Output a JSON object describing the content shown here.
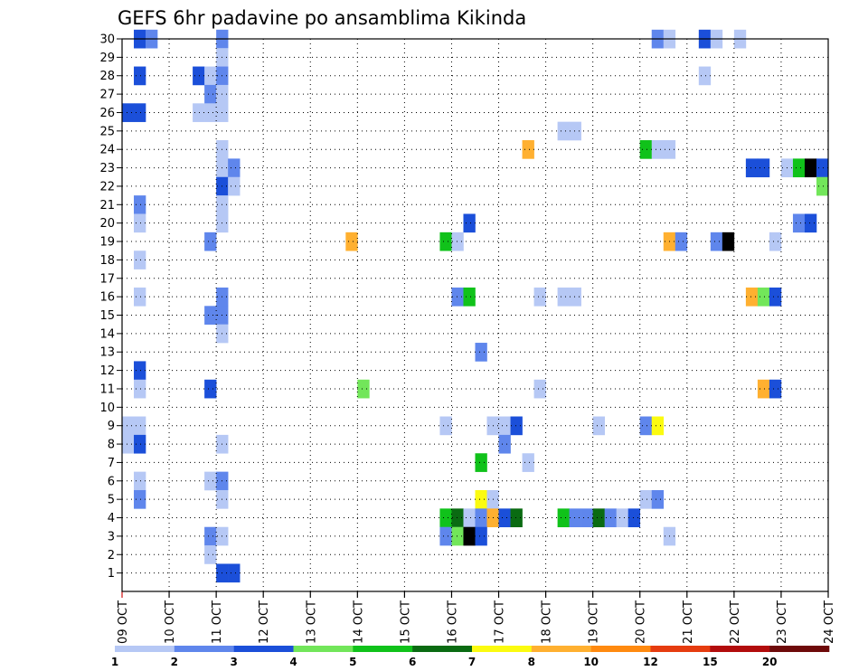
{
  "chart_data": {
    "type": "heatmap",
    "title": "GEFS 6hr padavine po ansamblima Kikinda",
    "xlabel": "",
    "ylabel": "",
    "x_tick_labels": [
      "09 OCT",
      "10 OCT",
      "11 OCT",
      "12 OCT",
      "13 OCT",
      "14 OCT",
      "15 OCT",
      "16 OCT",
      "17 OCT",
      "18 OCT",
      "19 OCT",
      "20 OCT",
      "21 OCT",
      "22 OCT",
      "23 OCT",
      "24 OCT"
    ],
    "y_tick_labels": [
      "1",
      "2",
      "3",
      "4",
      "5",
      "6",
      "7",
      "8",
      "9",
      "10",
      "11",
      "12",
      "13",
      "14",
      "15",
      "16",
      "17",
      "18",
      "19",
      "20",
      "21",
      "22",
      "23",
      "24",
      "25",
      "26",
      "27",
      "28",
      "29",
      "30"
    ],
    "x_unit": "6-hour step index from 09 OCT 00Z (4 steps per day)",
    "x_range": [
      0,
      60
    ],
    "y_range": [
      0,
      30
    ],
    "grid": true,
    "colorbar": {
      "bins": [
        {
          "label": "1",
          "color": "#b6c8f5"
        },
        {
          "label": "2",
          "color": "#5f86ec"
        },
        {
          "label": "3",
          "color": "#1b4fd9"
        },
        {
          "label": "4",
          "color": "#72e65a"
        },
        {
          "label": "5",
          "color": "#10c21a"
        },
        {
          "label": "6",
          "color": "#0a6b12"
        },
        {
          "label": "7",
          "color": "#fbfb10"
        },
        {
          "label": "8",
          "color": "#ffb030"
        },
        {
          "label": "10",
          "color": "#ff8a10"
        },
        {
          "label": "12",
          "color": "#e63c10"
        },
        {
          "label": "15",
          "color": "#b20c0c"
        },
        {
          "label": "20",
          "color": "#6e0a0a"
        }
      ]
    },
    "cells": [
      [
        1,
        30,
        3
      ],
      [
        2,
        30,
        2
      ],
      [
        8,
        30,
        2
      ],
      [
        45,
        30,
        2
      ],
      [
        46,
        30,
        1
      ],
      [
        49,
        30,
        3
      ],
      [
        50,
        30,
        1
      ],
      [
        52,
        30,
        1
      ],
      [
        8,
        29,
        1
      ],
      [
        1,
        28,
        3
      ],
      [
        6,
        28,
        3
      ],
      [
        7,
        28,
        1
      ],
      [
        8,
        28,
        2
      ],
      [
        49,
        28,
        1
      ],
      [
        7,
        27,
        2
      ],
      [
        8,
        27,
        1
      ],
      [
        0,
        26,
        3
      ],
      [
        1,
        26,
        3
      ],
      [
        6,
        26,
        1
      ],
      [
        7,
        26,
        1
      ],
      [
        8,
        26,
        1
      ],
      [
        37,
        25,
        1
      ],
      [
        38,
        25,
        1
      ],
      [
        8,
        24,
        1
      ],
      [
        34,
        24,
        8
      ],
      [
        44,
        24,
        5
      ],
      [
        45,
        24,
        1
      ],
      [
        46,
        24,
        1
      ],
      [
        8,
        23,
        1
      ],
      [
        9,
        23,
        2
      ],
      [
        53,
        23,
        3
      ],
      [
        54,
        23,
        3
      ],
      [
        56,
        23,
        1
      ],
      [
        57,
        23,
        5
      ],
      [
        58,
        23,
        15
      ],
      [
        59,
        23,
        3
      ],
      [
        8,
        22,
        3
      ],
      [
        9,
        22,
        1
      ],
      [
        59,
        22,
        4
      ],
      [
        1,
        21,
        2
      ],
      [
        8,
        21,
        1
      ],
      [
        1,
        20,
        1
      ],
      [
        8,
        20,
        1
      ],
      [
        29,
        20,
        3
      ],
      [
        57,
        20,
        2
      ],
      [
        58,
        20,
        3
      ],
      [
        7,
        19,
        2
      ],
      [
        19,
        19,
        8
      ],
      [
        27,
        19,
        5
      ],
      [
        28,
        19,
        1
      ],
      [
        46,
        19,
        8
      ],
      [
        47,
        19,
        2
      ],
      [
        50,
        19,
        2
      ],
      [
        51,
        19,
        15
      ],
      [
        55,
        19,
        1
      ],
      [
        1,
        18,
        1
      ],
      [
        1,
        16,
        1
      ],
      [
        8,
        16,
        2
      ],
      [
        28,
        16,
        2
      ],
      [
        29,
        16,
        5
      ],
      [
        35,
        16,
        1
      ],
      [
        37,
        16,
        1
      ],
      [
        38,
        16,
        1
      ],
      [
        53,
        16,
        8
      ],
      [
        54,
        16,
        4
      ],
      [
        55,
        16,
        3
      ],
      [
        7,
        15,
        2
      ],
      [
        8,
        15,
        2
      ],
      [
        8,
        14,
        1
      ],
      [
        30,
        13,
        2
      ],
      [
        1,
        12,
        3
      ],
      [
        1,
        11,
        1
      ],
      [
        7,
        11,
        3
      ],
      [
        20,
        11,
        4
      ],
      [
        35,
        11,
        1
      ],
      [
        54,
        11,
        8
      ],
      [
        55,
        11,
        3
      ],
      [
        0,
        9,
        1
      ],
      [
        1,
        9,
        1
      ],
      [
        27,
        9,
        1
      ],
      [
        31,
        9,
        1
      ],
      [
        32,
        9,
        1
      ],
      [
        33,
        9,
        3
      ],
      [
        40,
        9,
        1
      ],
      [
        44,
        9,
        2
      ],
      [
        45,
        9,
        7
      ],
      [
        0,
        8,
        1
      ],
      [
        1,
        8,
        3
      ],
      [
        8,
        8,
        1
      ],
      [
        32,
        8,
        2
      ],
      [
        30,
        7,
        5
      ],
      [
        34,
        7,
        1
      ],
      [
        1,
        6,
        1
      ],
      [
        7,
        6,
        1
      ],
      [
        8,
        6,
        2
      ],
      [
        1,
        5,
        2
      ],
      [
        8,
        5,
        1
      ],
      [
        30,
        5,
        7
      ],
      [
        31,
        5,
        1
      ],
      [
        44,
        5,
        1
      ],
      [
        45,
        5,
        2
      ],
      [
        27,
        4,
        5
      ],
      [
        28,
        4,
        6
      ],
      [
        29,
        4,
        1
      ],
      [
        30,
        4,
        2
      ],
      [
        31,
        4,
        8
      ],
      [
        32,
        4,
        3
      ],
      [
        33,
        4,
        6
      ],
      [
        37,
        4,
        5
      ],
      [
        38,
        4,
        2
      ],
      [
        39,
        4,
        2
      ],
      [
        40,
        4,
        6
      ],
      [
        41,
        4,
        2
      ],
      [
        42,
        4,
        1
      ],
      [
        43,
        4,
        3
      ],
      [
        7,
        3,
        2
      ],
      [
        8,
        3,
        1
      ],
      [
        27,
        3,
        2
      ],
      [
        28,
        3,
        4
      ],
      [
        29,
        3,
        15
      ],
      [
        30,
        3,
        3
      ],
      [
        46,
        3,
        1
      ],
      [
        7,
        2,
        1
      ],
      [
        8,
        1,
        3
      ],
      [
        9,
        1,
        3
      ]
    ]
  }
}
